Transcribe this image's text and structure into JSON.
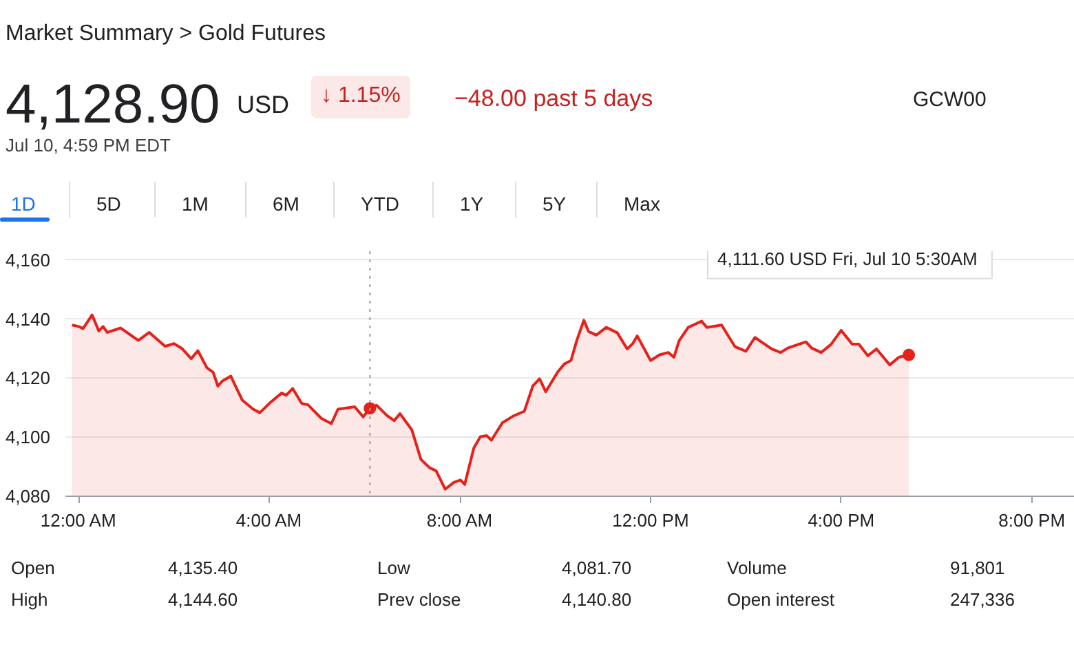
{
  "chart_data": {
    "type": "area",
    "title": "Market Summary > Gold Futures",
    "annotations": [
      "4,128.90",
      "USD",
      "↓ 1.15%",
      "−48.00 past 5 days",
      "GCW00",
      "Jul 10, 4:59 PM EDT",
      "1D",
      "5D",
      "1M",
      "6M",
      "YTD",
      "1Y",
      "5Y",
      "Max",
      "Open",
      "4,135.40",
      "High",
      "4,144.60",
      "Low",
      "4,081.70",
      "Prev close",
      "4,140.80",
      "Volume",
      "91,801",
      "Open interest",
      "247,336",
      "4,111.60 USD  Fri, Jul 10 5:30AM"
    ],
    "series": [
      {
        "color": "#e8201a",
        "x": [
          -0.14,
          0,
          0.09,
          0.28,
          0.42,
          0.51,
          0.6,
          0.88,
          1.25,
          1.48,
          1.81,
          2.0,
          2.17,
          2.36,
          2.5,
          2.69,
          2.82,
          2.92,
          3.01,
          3.19,
          3.43,
          3.66,
          3.8,
          4.03,
          4.26,
          4.35,
          4.49,
          4.68,
          4.81,
          5.09,
          5.3,
          5.44,
          5.79,
          5.97,
          6.11,
          6.25,
          6.48,
          6.62,
          6.74,
          6.99,
          7.18,
          7.36,
          7.5,
          7.69,
          7.87,
          8.01,
          8.1,
          8.29,
          8.43,
          8.56,
          8.66,
          8.89,
          9.12,
          9.35,
          9.53,
          9.67,
          9.8,
          10.05,
          10.19,
          10.33,
          10.45,
          10.6,
          10.7,
          10.86,
          11.07,
          11.3,
          11.51,
          11.63,
          11.72,
          12.0,
          12.19,
          12.37,
          12.49,
          12.6,
          12.79,
          13.07,
          13.18,
          13.49,
          13.77,
          14.0,
          14.19,
          14.37,
          14.54,
          14.73,
          14.88,
          15.26,
          15.38,
          15.58,
          15.79,
          16.0,
          16.23,
          16.37,
          16.56,
          16.74,
          17.02,
          17.21,
          17.42
        ],
        "values": [
          4138,
          4137.5,
          4136.8,
          4141.4,
          4136,
          4137.5,
          4135.5,
          4137,
          4132.8,
          4135.5,
          4130.8,
          4131.7,
          4130,
          4126.6,
          4129.3,
          4123.5,
          4122,
          4117.3,
          4119,
          4120.7,
          4112.6,
          4109.5,
          4108.3,
          4111.9,
          4115,
          4114.2,
          4116.5,
          4111.4,
          4111,
          4106.4,
          4104.6,
          4109.5,
          4110.3,
          4106.9,
          4109.8,
          4110.8,
          4107.2,
          4105.6,
          4108,
          4102.5,
          4092.5,
          4089.7,
          4088.6,
          4082.4,
          4084.7,
          4085.5,
          4084,
          4096.3,
          4100.2,
          4100.5,
          4099,
          4104.9,
          4107.2,
          4108.8,
          4117.4,
          4119.8,
          4115.4,
          4122.1,
          4124.8,
          4126,
          4132.7,
          4139.6,
          4135.8,
          4134.6,
          4137.2,
          4135.4,
          4129.9,
          4131.8,
          4134.3,
          4126,
          4127.9,
          4128.7,
          4127.1,
          4132.7,
          4137.2,
          4139.3,
          4137.2,
          4138,
          4130.7,
          4129.1,
          4133.8,
          4131.8,
          4129.9,
          4128.7,
          4130.2,
          4132.3,
          4130.2,
          4128.7,
          4131.5,
          4136.2,
          4131.5,
          4131.5,
          4127.6,
          4129.9,
          4124.5,
          4127.1,
          4127.9
        ]
      },
      {
        "type": "scatter",
        "color": "#e8201a",
        "marker": "circle",
        "x": [
          6.11,
          17.42
        ],
        "values": [
          4109.8,
          4127.9
        ]
      }
    ],
    "xlim": [
      -0.28,
      20.9
    ],
    "xticks": [
      {
        "value": 0,
        "label": "12:00 AM"
      },
      {
        "value": 4,
        "label": "4:00 AM"
      },
      {
        "value": 8,
        "label": "8:00 AM"
      },
      {
        "value": 12,
        "label": "12:00 PM"
      },
      {
        "value": 16,
        "label": "4:00 PM"
      },
      {
        "value": 20,
        "label": "8:00 PM"
      }
    ],
    "ylim": [
      4080,
      4163
    ],
    "yticks": [
      {
        "value": 4080,
        "label": "4,080"
      },
      {
        "value": 4100,
        "label": "4,100"
      },
      {
        "value": 4120,
        "label": "4,120"
      },
      {
        "value": 4140,
        "label": "4,140"
      },
      {
        "value": 4160,
        "label": "4,160"
      }
    ],
    "grid": "y",
    "ref_lines": [
      {
        "axis": "x",
        "value": 6.11,
        "color": "#999999",
        "line_style": "dotted"
      }
    ]
  }
}
